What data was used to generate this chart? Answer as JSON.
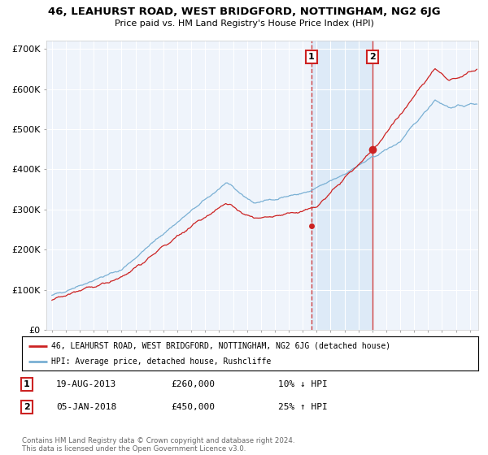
{
  "title": "46, LEAHURST ROAD, WEST BRIDGFORD, NOTTINGHAM, NG2 6JG",
  "subtitle": "Price paid vs. HM Land Registry's House Price Index (HPI)",
  "ylim": [
    0,
    720000
  ],
  "yticks": [
    0,
    100000,
    200000,
    300000,
    400000,
    500000,
    600000,
    700000
  ],
  "ytick_labels": [
    "£0",
    "£100K",
    "£200K",
    "£300K",
    "£400K",
    "£500K",
    "£600K",
    "£700K"
  ],
  "background_color": "#ffffff",
  "plot_bg_color": "#eff4fb",
  "grid_color": "#ffffff",
  "hpi_color": "#7ab0d4",
  "price_color": "#cc2222",
  "transaction1_x": 2013.63,
  "transaction1_price": 260000,
  "transaction1_date": "19-AUG-2013",
  "transaction1_pct": "10% ↓ HPI",
  "transaction2_x": 2018.02,
  "transaction2_price": 450000,
  "transaction2_date": "05-JAN-2018",
  "transaction2_pct": "25% ↑ HPI",
  "legend_line1": "46, LEAHURST ROAD, WEST BRIDGFORD, NOTTINGHAM, NG2 6JG (detached house)",
  "legend_line2": "HPI: Average price, detached house, Rushcliffe",
  "footer": "Contains HM Land Registry data © Crown copyright and database right 2024.\nThis data is licensed under the Open Government Licence v3.0.",
  "xmin": 1994.6,
  "xmax": 2025.6,
  "shade_color": "#ddeaf7"
}
